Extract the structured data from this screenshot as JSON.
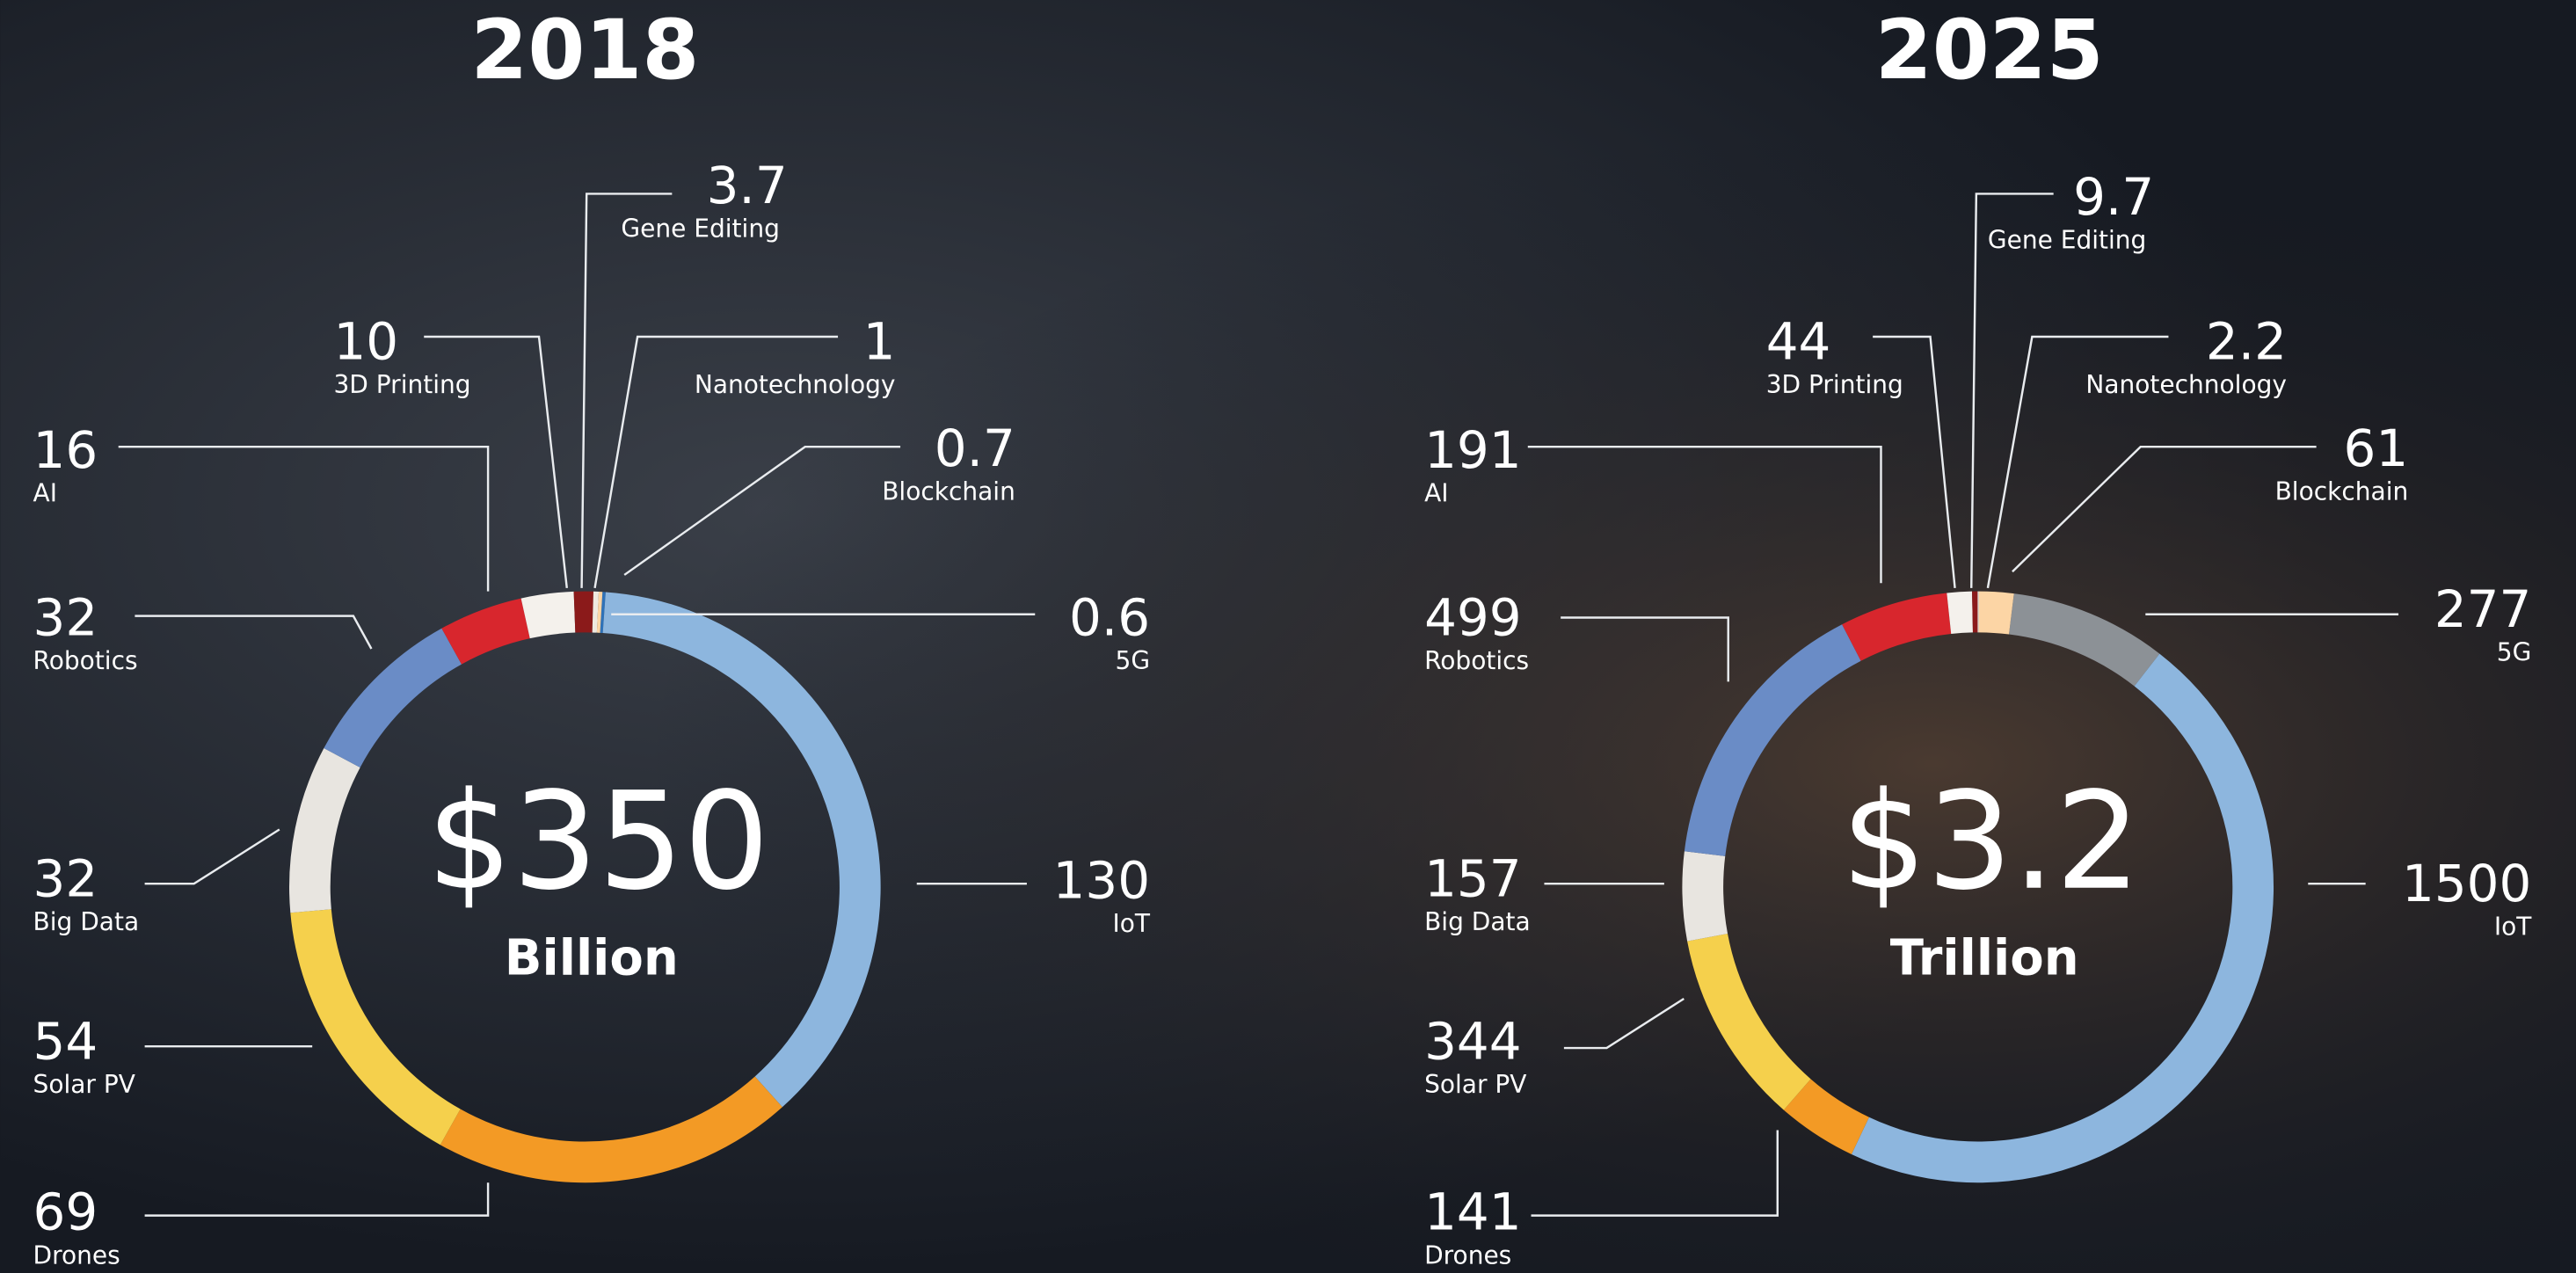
{
  "chart_data": [
    {
      "type": "donut",
      "title": "2018",
      "center_value": "$350",
      "center_unit": "Billion",
      "categories": [
        "5G",
        "IoT",
        "Drones",
        "Solar PV",
        "Big Data",
        "Robotics",
        "AI",
        "3D Printing",
        "Gene Editing",
        "Nanotechnology",
        "Blockchain"
      ],
      "values": [
        0.6,
        130,
        69,
        54,
        32,
        32,
        16,
        10,
        3.7,
        1,
        0.7
      ],
      "colors": [
        "#2f72b8",
        "#8db6de",
        "#f39a25",
        "#f5d04c",
        "#e8e5e0",
        "#6a8cc6",
        "#d8262d",
        "#f4f1ec",
        "#8b1a1a",
        "#efe9e0",
        "#fcd5a5"
      ]
    },
    {
      "type": "donut",
      "title": "2025",
      "center_value": "$3.2",
      "center_unit": "Trillion",
      "categories": [
        "5G",
        "IoT",
        "Drones",
        "Solar PV",
        "Big Data",
        "Robotics",
        "AI",
        "3D Printing",
        "Gene Editing",
        "Nanotechnology",
        "Blockchain"
      ],
      "values": [
        277,
        1500,
        141,
        344,
        157,
        499,
        191,
        44,
        9.7,
        2.2,
        61
      ],
      "colors": [
        "#8c9196",
        "#8db6de",
        "#f39a25",
        "#f5d04c",
        "#e8e5e0",
        "#6a8cc6",
        "#d8262d",
        "#f4f1ec",
        "#8b1a1a",
        "#efe9e0",
        "#fcd5a5"
      ]
    }
  ]
}
